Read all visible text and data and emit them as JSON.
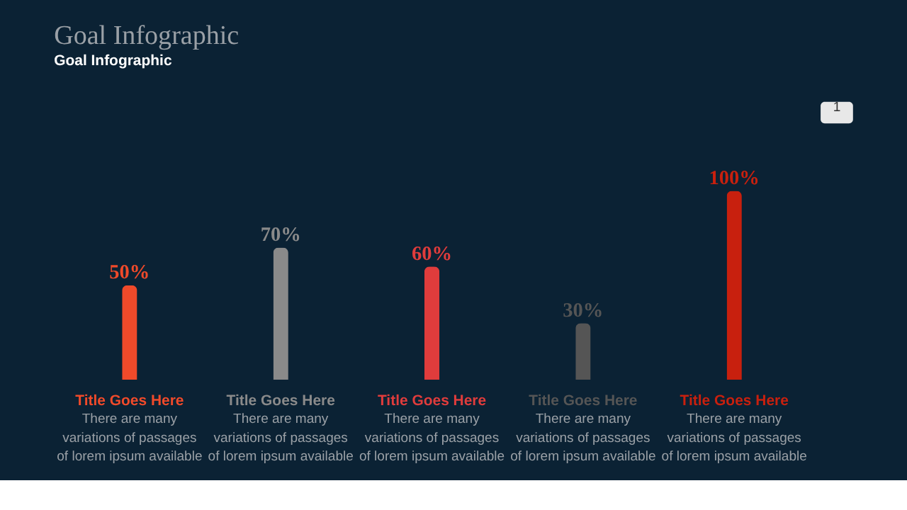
{
  "chart_data": {
    "type": "bar",
    "title": "Goal Infographic",
    "subtitle": "Goal Infographic",
    "categories": [
      "Title Goes Here",
      "Title Goes Here",
      "Title Goes Here",
      "Title Goes Here",
      "Title Goes Here"
    ],
    "values": [
      50,
      70,
      60,
      30,
      100
    ],
    "colors": [
      "#f04a2a",
      "#8a8a8a",
      "#e03c3c",
      "#555555",
      "#c8200e"
    ],
    "value_labels": [
      "50%",
      "70%",
      "60%",
      "30%",
      "100%"
    ],
    "annotations": [
      "There are many variations of passages of lorem ipsum available",
      "There are many variations of passages of lorem ipsum available",
      "There are many variations of passages of lorem ipsum available",
      "There are many variations of passages of lorem ipsum available",
      "There are many variations of passages of lorem ipsum available",
      "1"
    ]
  }
}
